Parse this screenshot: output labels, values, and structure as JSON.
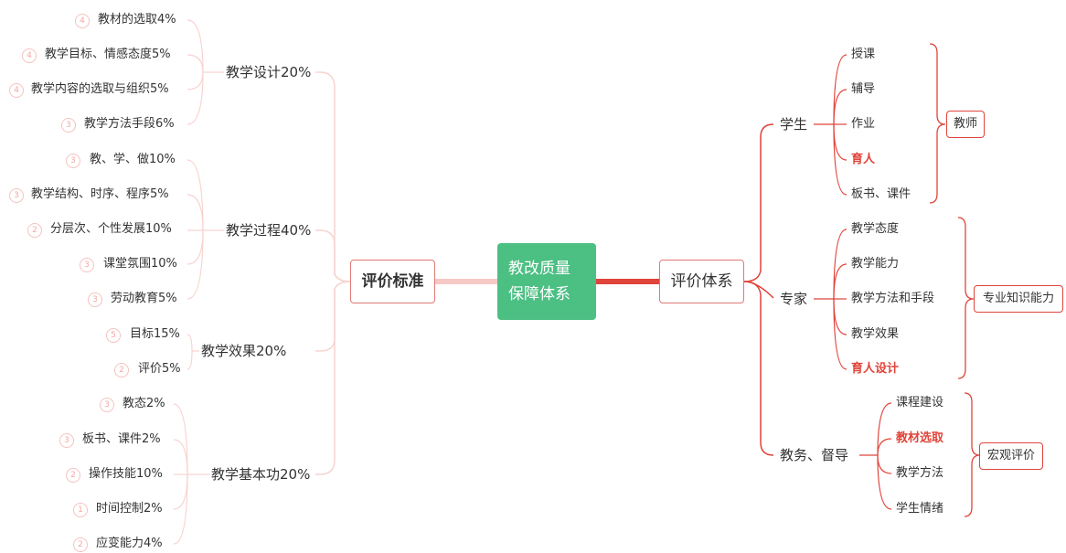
{
  "center": {
    "line1": "教改质量",
    "line2": "保障体系"
  },
  "left_root": "评价标准",
  "right_root": "评价体系",
  "left_groups": [
    {
      "label": "教学设计20%",
      "items": [
        {
          "num": "4",
          "text": "教材的选取4%"
        },
        {
          "num": "4",
          "text": "教学目标、情感态度5%"
        },
        {
          "num": "4",
          "text": "教学内容的选取与组织5%"
        },
        {
          "num": "3",
          "text": "教学方法手段6%"
        }
      ]
    },
    {
      "label": "教学过程40%",
      "items": [
        {
          "num": "3",
          "text": "教、学、做10%"
        },
        {
          "num": "3",
          "text": "教学结构、时序、程序5%"
        },
        {
          "num": "2",
          "text": "分层次、个性发展10%"
        },
        {
          "num": "3",
          "text": "课堂氛围10%"
        },
        {
          "num": "3",
          "text": "劳动教育5%"
        }
      ]
    },
    {
      "label": "教学效果20%",
      "items": [
        {
          "num": "5",
          "text": "目标15%"
        },
        {
          "num": "2",
          "text": "评价5%"
        }
      ]
    },
    {
      "label": "教学基本功20%",
      "items": [
        {
          "num": "3",
          "text": "教态2%"
        },
        {
          "num": "3",
          "text": "板书、课件2%"
        },
        {
          "num": "2",
          "text": "操作技能10%"
        },
        {
          "num": "1",
          "text": "时间控制2%"
        },
        {
          "num": "2",
          "text": "应变能力4%"
        }
      ]
    }
  ],
  "right_groups": [
    {
      "label": "学生",
      "summary": "教师",
      "items": [
        {
          "text": "授课",
          "highlight": false
        },
        {
          "text": "辅导",
          "highlight": false
        },
        {
          "text": "作业",
          "highlight": false
        },
        {
          "text": "育人",
          "highlight": true
        },
        {
          "text": "板书、课件",
          "highlight": false
        }
      ]
    },
    {
      "label": "专家",
      "summary": "专业知识能力",
      "items": [
        {
          "text": "教学态度",
          "highlight": false
        },
        {
          "text": "教学能力",
          "highlight": false
        },
        {
          "text": "教学方法和手段",
          "highlight": false
        },
        {
          "text": "教学效果",
          "highlight": false
        },
        {
          "text": "育人设计",
          "highlight": true
        }
      ]
    },
    {
      "label": "教务、督导",
      "summary": "宏观评价",
      "items": [
        {
          "text": "课程建设",
          "highlight": false
        },
        {
          "text": "教材选取",
          "highlight": true
        },
        {
          "text": "教学方法",
          "highlight": false
        },
        {
          "text": "学生情绪",
          "highlight": false
        }
      ]
    }
  ],
  "colors": {
    "center": "#4cbf83",
    "accent": "#e0443a",
    "left_branch": "#f7c9c5",
    "left_line": "#f8d3d0",
    "highlight": "#e0443a"
  }
}
